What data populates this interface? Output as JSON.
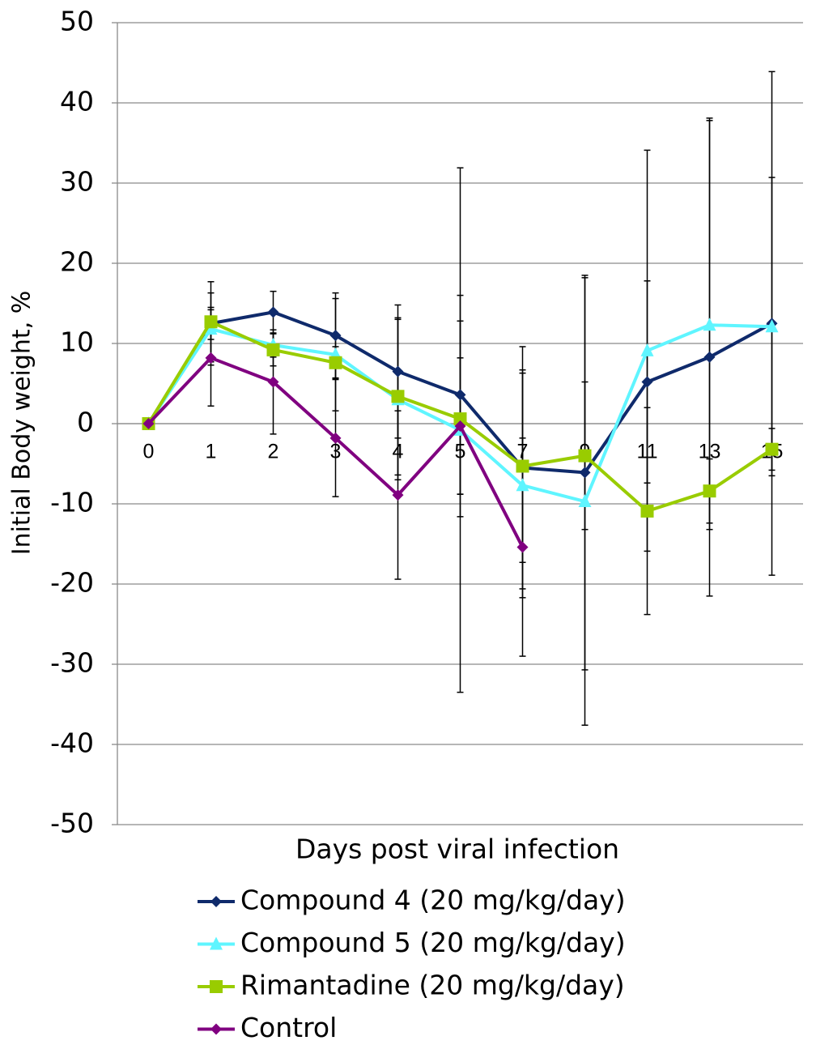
{
  "chart_data": {
    "type": "line",
    "xlabel": "Days post viral infection",
    "ylabel": "Initial Body weight, %",
    "categories": [
      "0",
      "1",
      "2",
      "3",
      "4",
      "5",
      "7",
      "9",
      "11",
      "13",
      "15"
    ],
    "ylim": [
      -50,
      50
    ],
    "yticks": [
      -50,
      -40,
      -30,
      -20,
      -10,
      0,
      10,
      20,
      30,
      40,
      50
    ],
    "grid": true,
    "legend": "bottom",
    "series": [
      {
        "name": "Compound 4 (20 mg/kg/day)",
        "color": "#0f2a6b",
        "marker": "diamond",
        "values": [
          0,
          12.5,
          13.9,
          11.0,
          6.5,
          3.6,
          -5.5,
          -6.1,
          5.2,
          8.3,
          12.5
        ],
        "errors": [
          0,
          2,
          2.6,
          5.3,
          8.3,
          12.4,
          15.1,
          24.6,
          12.6,
          29.8,
          31.4
        ]
      },
      {
        "name": "Compound 5 (20 mg/kg/day)",
        "color": "#5ff5ff",
        "marker": "triangle",
        "values": [
          0,
          11.8,
          9.8,
          8.6,
          3.0,
          -0.8,
          -7.7,
          -9.7,
          9.1,
          12.3,
          12.1
        ],
        "errors": [
          0,
          4.5,
          1.5,
          7,
          10,
          32.7,
          14,
          27.9,
          25,
          25.5,
          18.6
        ]
      },
      {
        "name": "Rimantadine (20 mg/kg/day)",
        "color": "#99cc00",
        "marker": "square",
        "values": [
          0,
          12.7,
          9.2,
          7.6,
          3.4,
          0.6,
          -5.3,
          -4.0,
          -10.9,
          -8.4,
          -3.2
        ],
        "errors": [
          0,
          5,
          2,
          2,
          9.8,
          12.2,
          12,
          9.2,
          12.9,
          4,
          2.6
        ]
      },
      {
        "name": "Control",
        "color": "#800080",
        "marker": "diamond",
        "values": [
          0,
          8.2,
          5.2,
          -1.8,
          -8.9,
          -0.3,
          -15.4,
          null,
          null,
          null,
          null
        ],
        "errors": [
          0,
          6,
          6.5,
          7.3,
          10.5,
          8.5,
          13.6,
          null,
          null,
          null,
          null
        ]
      }
    ]
  }
}
